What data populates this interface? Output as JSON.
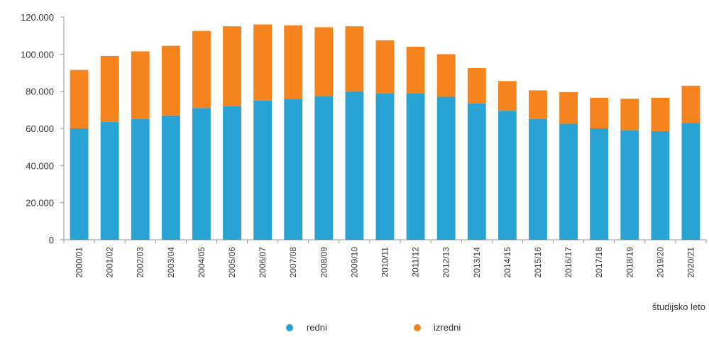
{
  "chart_data": {
    "type": "bar",
    "stacked": true,
    "xlabel": "študijsko leto",
    "ylabel": "",
    "ylim": [
      0,
      120000
    ],
    "yticks": [
      "0",
      "20.000",
      "40.000",
      "60.000",
      "80.000",
      "100.000",
      "120.000"
    ],
    "ytick_values": [
      0,
      20000,
      40000,
      60000,
      80000,
      100000,
      120000
    ],
    "categories": [
      "2000/01",
      "2001/02",
      "2002/03",
      "2003/04",
      "2004/05",
      "2005/06",
      "2006/07",
      "2007/08",
      "2008/09",
      "2009/10",
      "2010/11",
      "2011/12",
      "2012/13",
      "2013/14",
      "2014/15",
      "2015/16",
      "2016/17",
      "2017/18",
      "2018/19",
      "2019/20",
      "2020/21"
    ],
    "series": [
      {
        "name": "redni",
        "color": "#29a3d3",
        "values": [
          60000,
          63500,
          65000,
          67000,
          71000,
          72000,
          75000,
          76000,
          77500,
          80000,
          79000,
          79000,
          77000,
          73500,
          69500,
          65000,
          62500,
          60000,
          59000,
          58500,
          63000
        ]
      },
      {
        "name": "izredni",
        "color": "#f5841f",
        "values": [
          31500,
          35500,
          36500,
          37500,
          41500,
          43000,
          41000,
          39500,
          37000,
          35000,
          28500,
          25000,
          23000,
          19000,
          16000,
          15500,
          17000,
          16500,
          17000,
          18000,
          20000
        ]
      }
    ],
    "grid": false,
    "legend_position": "bottom"
  }
}
